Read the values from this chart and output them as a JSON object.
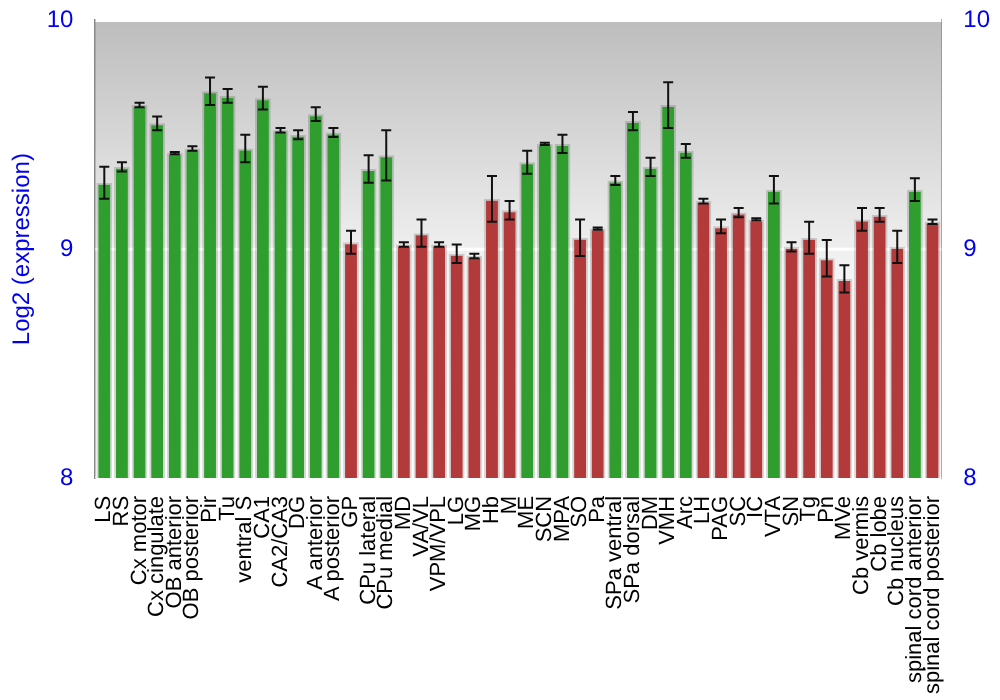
{
  "chart_data": {
    "type": "bar",
    "ylabel": "Log2 (expression)",
    "categories": [
      "LS",
      "RS",
      "Cx motor",
      "Cx cingulate",
      "OB anterior",
      "OB posterior",
      "Pir",
      "Tu",
      "ventral S",
      "CA1",
      "CA2/CA3",
      "DG",
      "A anterior",
      "A posterior",
      "GP",
      "CPu lateral",
      "CPu medial",
      "MD",
      "VA/VL",
      "VPM/VPL",
      "LG",
      "MG",
      "Hb",
      "M",
      "ME",
      "SCN",
      "MPA",
      "SO",
      "Pa",
      "SPa ventral",
      "SPa dorsal",
      "DM",
      "VMH",
      "Arc",
      "LH",
      "PAG",
      "SC",
      "IC",
      "VTA",
      "SN",
      "Tg",
      "Pn",
      "MVe",
      "Cb vermis",
      "Cb lobe",
      "Cb nucleus",
      "spinal cord anterior",
      "spinal cord posterior"
    ],
    "values": [
      9.29,
      9.36,
      9.63,
      9.55,
      9.42,
      9.44,
      9.69,
      9.67,
      9.44,
      9.66,
      9.52,
      9.5,
      9.59,
      9.51,
      9.03,
      9.35,
      9.41,
      9.02,
      9.07,
      9.02,
      8.98,
      8.97,
      9.22,
      9.17,
      9.38,
      9.46,
      9.46,
      9.05,
      9.09,
      9.3,
      9.56,
      9.36,
      9.63,
      9.43,
      9.21,
      9.1,
      9.16,
      9.13,
      9.26,
      9.01,
      9.05,
      8.96,
      8.87,
      9.13,
      9.15,
      9.01,
      9.26,
      9.12
    ],
    "errors": [
      0.07,
      0.02,
      0.01,
      0.03,
      0.005,
      0.01,
      0.06,
      0.03,
      0.06,
      0.05,
      0.01,
      0.02,
      0.03,
      0.02,
      0.05,
      0.06,
      0.11,
      0.01,
      0.06,
      0.01,
      0.04,
      0.01,
      0.1,
      0.04,
      0.05,
      0.005,
      0.04,
      0.08,
      0.005,
      0.02,
      0.04,
      0.04,
      0.1,
      0.03,
      0.01,
      0.03,
      0.02,
      0.005,
      0.06,
      0.02,
      0.07,
      0.08,
      0.06,
      0.05,
      0.03,
      0.07,
      0.05,
      0.01
    ],
    "colors": [
      "#2f9e2f",
      "#2f9e2f",
      "#2f9e2f",
      "#2f9e2f",
      "#2f9e2f",
      "#2f9e2f",
      "#2f9e2f",
      "#2f9e2f",
      "#2f9e2f",
      "#2f9e2f",
      "#2f9e2f",
      "#2f9e2f",
      "#2f9e2f",
      "#2f9e2f",
      "#b33a3a",
      "#2f9e2f",
      "#2f9e2f",
      "#b33a3a",
      "#b33a3a",
      "#b33a3a",
      "#b33a3a",
      "#b33a3a",
      "#b33a3a",
      "#b33a3a",
      "#2f9e2f",
      "#2f9e2f",
      "#2f9e2f",
      "#b33a3a",
      "#b33a3a",
      "#2f9e2f",
      "#2f9e2f",
      "#2f9e2f",
      "#2f9e2f",
      "#2f9e2f",
      "#b33a3a",
      "#b33a3a",
      "#b33a3a",
      "#b33a3a",
      "#2f9e2f",
      "#b33a3a",
      "#b33a3a",
      "#b33a3a",
      "#b33a3a",
      "#b33a3a",
      "#b33a3a",
      "#b33a3a",
      "#2f9e2f",
      "#b33a3a"
    ],
    "ylim": [
      8,
      10
    ],
    "yticks": [
      8,
      9,
      10
    ],
    "y2lim": [
      8,
      10
    ],
    "y2ticks": [
      8,
      9,
      10
    ],
    "grid": "y",
    "legend": false
  }
}
